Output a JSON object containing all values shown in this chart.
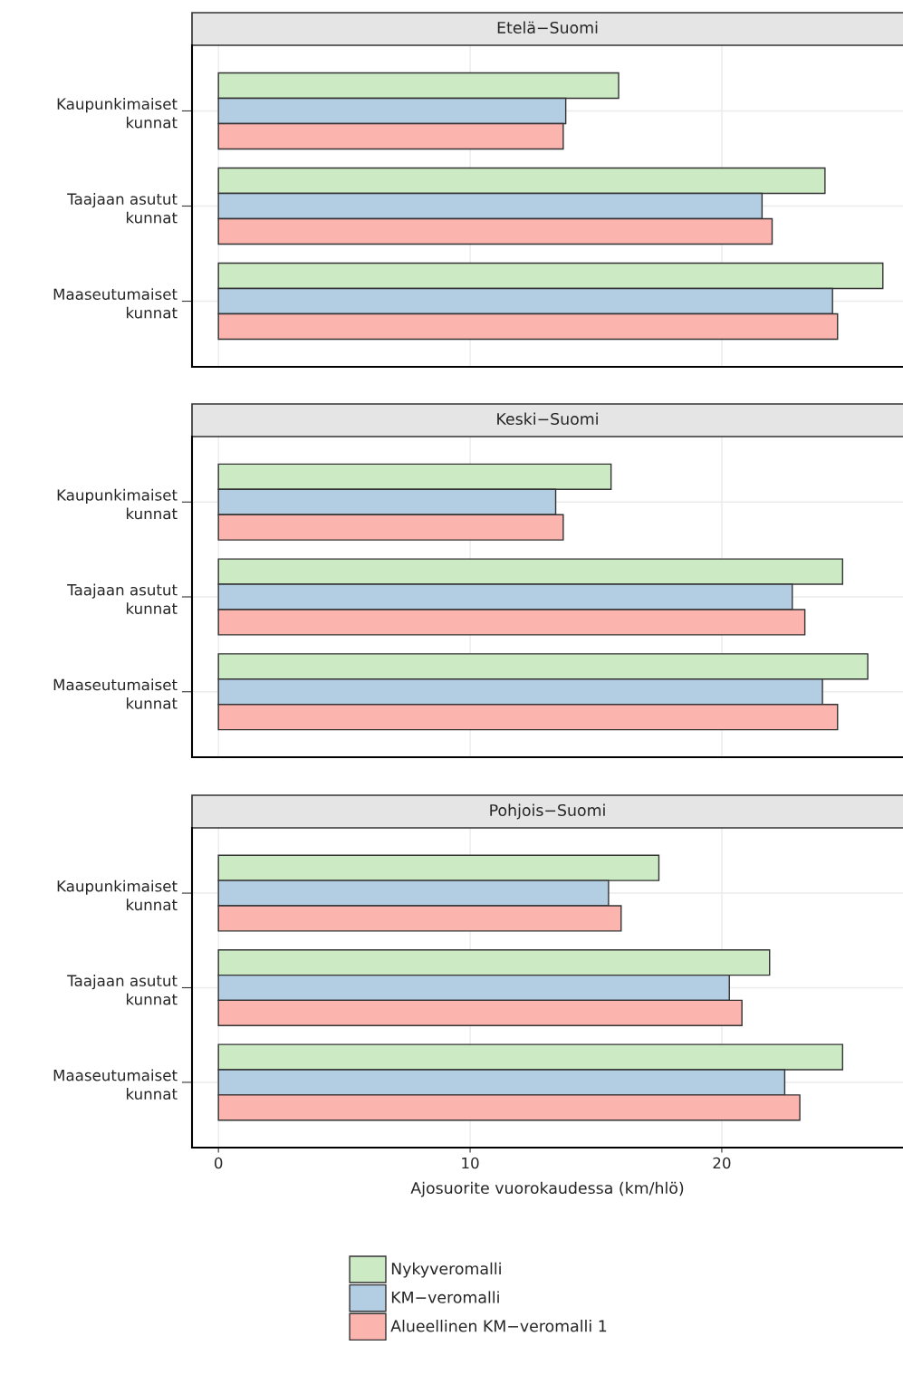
{
  "chart_data": [
    {
      "type": "bar",
      "orientation": "horizontal",
      "title": "Etelä−Suomi",
      "categories": [
        "Kaupunkimaiset\nkunnat",
        "Taajaan asutut\nkunnat",
        "Maaseutumaiset\nkunnat"
      ],
      "series": [
        {
          "color": "#ccebc5",
          "values": [
            15.9,
            24.1,
            26.4
          ]
        },
        {
          "color": "#b3cde3",
          "values": [
            13.8,
            21.6,
            24.4
          ]
        },
        {
          "color": "#fbb4ae",
          "values": [
            13.7,
            22.0,
            24.6
          ]
        }
      ],
      "xlim": [
        -1.05,
        27.2
      ],
      "xticks": [
        0,
        10,
        20
      ],
      "tick_labels": "y",
      "grid": true
    },
    {
      "type": "bar",
      "orientation": "horizontal",
      "title": "Keski−Suomi",
      "categories": [
        "Kaupunkimaiset\nkunnat",
        "Taajaan asutut\nkunnat",
        "Maaseutumaiset\nkunnat"
      ],
      "series": [
        {
          "color": "#ccebc5",
          "values": [
            15.6,
            24.8,
            25.8
          ]
        },
        {
          "color": "#b3cde3",
          "values": [
            13.4,
            22.8,
            24.0
          ]
        },
        {
          "color": "#fbb4ae",
          "values": [
            13.7,
            23.3,
            24.6
          ]
        }
      ],
      "xlim": [
        -1.05,
        27.2
      ],
      "xticks": [
        0,
        10,
        20
      ],
      "tick_labels": "y",
      "grid": true
    },
    {
      "type": "bar",
      "orientation": "horizontal",
      "title": "Pohjois−Suomi",
      "xlabel": "Ajosuorite vuorokaudessa (km/hlö)",
      "categories": [
        "Kaupunkimaiset\nkunnat",
        "Taajaan asutut\nkunnat",
        "Maaseutumaiset\nkunnat"
      ],
      "series": [
        {
          "name": "Nykyveromalli",
          "color": "#ccebc5",
          "values": [
            17.5,
            21.9,
            24.8
          ]
        },
        {
          "name": "KM−veromalli",
          "color": "#b3cde3",
          "values": [
            15.5,
            20.3,
            22.5
          ]
        },
        {
          "name": "Alueellinen KM−veromalli 1",
          "color": "#fbb4ae",
          "values": [
            16.0,
            20.8,
            23.1
          ]
        }
      ],
      "xlim": [
        -1.05,
        27.2
      ],
      "xticks": [
        0,
        10,
        20
      ],
      "grid": true,
      "legend": "bottom"
    }
  ]
}
